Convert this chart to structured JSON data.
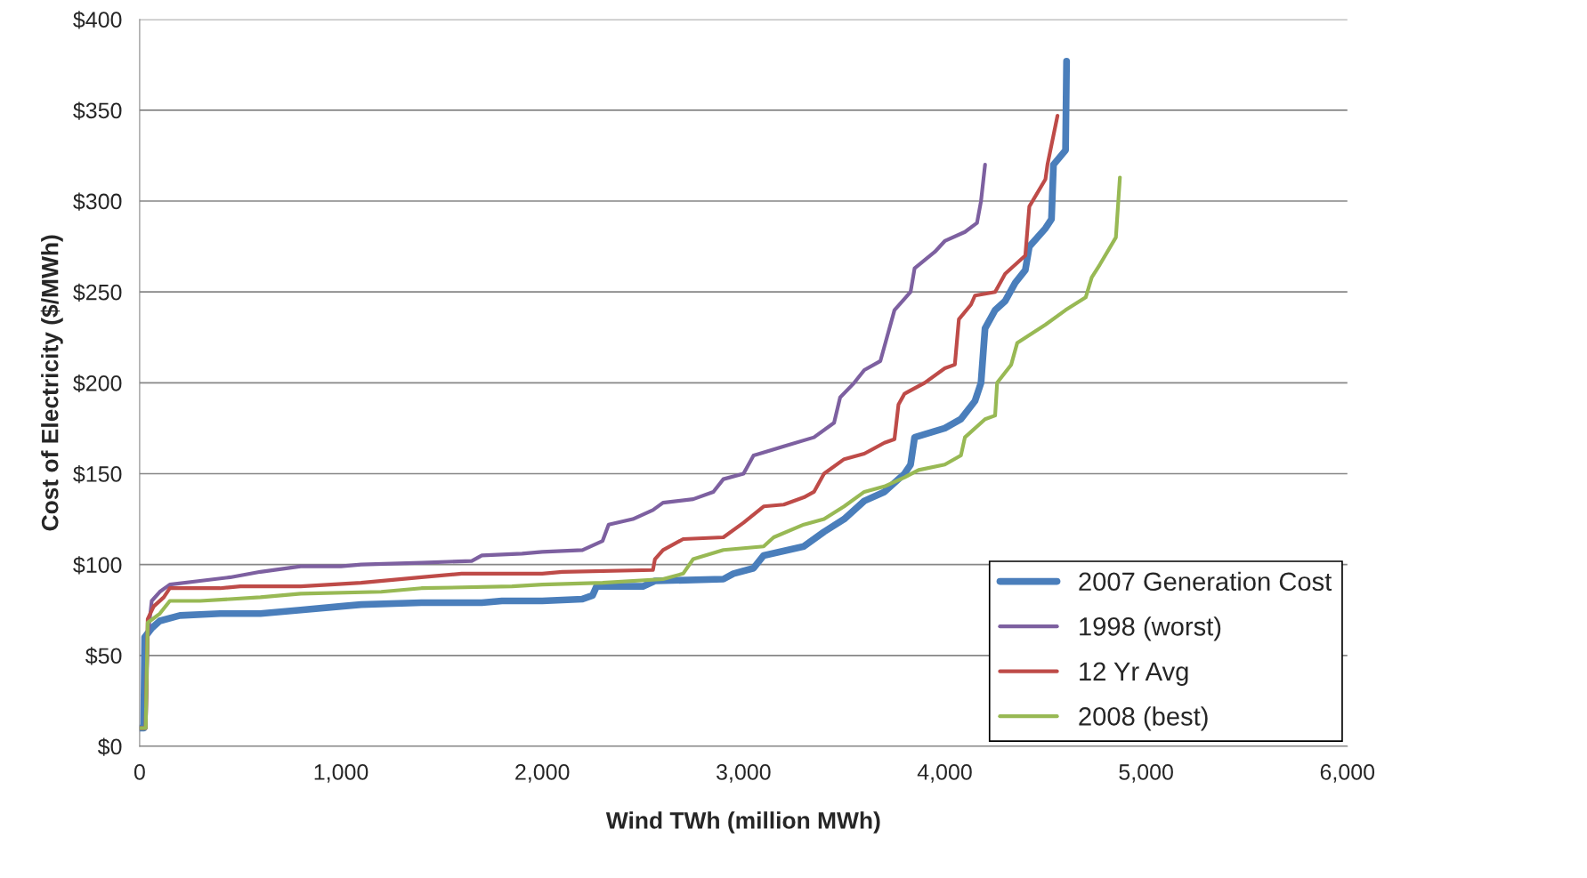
{
  "chart_data": {
    "type": "line",
    "xlabel": "Wind TWh (million MWh)",
    "ylabel": "Cost of Electricity ($/MWh)",
    "xlim": [
      0,
      6000
    ],
    "ylim": [
      0,
      400
    ],
    "xticks": [
      0,
      {
        "value": 1000,
        "label": "1,000"
      },
      {
        "value": 2000,
        "label": "2,000"
      },
      {
        "value": 3000,
        "label": "3,000"
      },
      {
        "value": 4000,
        "label": "4,000"
      },
      {
        "value": 5000,
        "label": "5,000"
      },
      {
        "value": 6000,
        "label": "6,000"
      }
    ],
    "yticks": [
      {
        "value": 0,
        "label": "$0"
      },
      {
        "value": 50,
        "label": "$50"
      },
      {
        "value": 100,
        "label": "$100"
      },
      {
        "value": 150,
        "label": "$150"
      },
      {
        "value": 200,
        "label": "$200"
      },
      {
        "value": 250,
        "label": "$250"
      },
      {
        "value": 300,
        "label": "$300"
      },
      {
        "value": 350,
        "label": "$350"
      },
      {
        "value": 400,
        "label": "$400"
      }
    ],
    "grid": "y",
    "legend": "bottom right",
    "marker": "none",
    "line_style": "solid",
    "series": [
      {
        "name": "2007 Generation Cost",
        "color": "#4a7ebb",
        "x": [
          0,
          20,
          25,
          60,
          100,
          200,
          400,
          600,
          800,
          1000,
          1100,
          1400,
          1700,
          1800,
          2000,
          2200,
          2250,
          2270,
          2500,
          2560,
          2900,
          2950,
          3050,
          3100,
          3300,
          3400,
          3500,
          3600,
          3700,
          3800,
          3830,
          3850,
          4000,
          4080,
          4150,
          4180,
          4200,
          4250,
          4300,
          4350,
          4400,
          4420,
          4500,
          4530,
          4540,
          4600,
          4605
        ],
        "values": [
          10,
          10,
          60,
          65,
          69,
          72,
          73,
          73,
          75,
          77,
          78,
          79,
          79,
          80,
          80,
          81,
          83,
          88,
          88,
          91,
          92,
          95,
          98,
          105,
          110,
          118,
          125,
          135,
          140,
          150,
          155,
          170,
          175,
          180,
          190,
          200,
          230,
          240,
          245,
          255,
          262,
          275,
          285,
          290,
          320,
          328,
          377
        ]
      },
      {
        "name": "1998 (worst)",
        "color": "#7d60a0",
        "x": [
          0,
          30,
          40,
          60,
          100,
          150,
          300,
          450,
          600,
          800,
          1000,
          1100,
          1400,
          1650,
          1700,
          1900,
          2000,
          2200,
          2300,
          2330,
          2450,
          2550,
          2600,
          2750,
          2850,
          2900,
          3000,
          3050,
          3200,
          3350,
          3450,
          3480,
          3550,
          3600,
          3680,
          3700,
          3750,
          3830,
          3850,
          3950,
          4000,
          4100,
          4160,
          4180,
          4200
        ],
        "values": [
          10,
          10,
          60,
          80,
          85,
          89,
          91,
          93,
          96,
          99,
          99,
          100,
          101,
          102,
          105,
          106,
          107,
          108,
          113,
          122,
          125,
          130,
          134,
          136,
          140,
          147,
          150,
          160,
          165,
          170,
          178,
          192,
          200,
          207,
          212,
          220,
          240,
          250,
          263,
          272,
          278,
          283,
          288,
          300,
          320
        ]
      },
      {
        "name": "12 Yr Avg",
        "color": "#be4b48",
        "x": [
          0,
          30,
          40,
          70,
          120,
          150,
          400,
          500,
          800,
          1100,
          1400,
          1600,
          2000,
          2100,
          2550,
          2560,
          2600,
          2700,
          2900,
          3000,
          3100,
          3200,
          3300,
          3350,
          3400,
          3500,
          3600,
          3700,
          3750,
          3770,
          3800,
          3900,
          4000,
          4050,
          4070,
          4130,
          4150,
          4250,
          4300,
          4400,
          4420,
          4500,
          4510,
          4560
        ],
        "values": [
          10,
          10,
          70,
          77,
          82,
          87,
          87,
          88,
          88,
          90,
          93,
          95,
          95,
          96,
          97,
          103,
          108,
          114,
          115,
          123,
          132,
          133,
          137,
          140,
          150,
          158,
          161,
          167,
          169,
          188,
          194,
          200,
          208,
          210,
          235,
          243,
          248,
          250,
          260,
          270,
          297,
          312,
          320,
          347
        ]
      },
      {
        "name": "2008 (best)",
        "color": "#98b954",
        "x": [
          0,
          30,
          40,
          100,
          150,
          300,
          600,
          800,
          1200,
          1400,
          1850,
          2000,
          2300,
          2600,
          2700,
          2750,
          2900,
          3100,
          3150,
          3300,
          3400,
          3500,
          3600,
          3700,
          3800,
          3870,
          4000,
          4080,
          4100,
          4200,
          4250,
          4260,
          4330,
          4360,
          4500,
          4600,
          4700,
          4730,
          4770,
          4850,
          4870
        ],
        "values": [
          10,
          10,
          68,
          73,
          80,
          80,
          82,
          84,
          85,
          87,
          88,
          89,
          90,
          92,
          95,
          103,
          108,
          110,
          115,
          122,
          125,
          132,
          140,
          143,
          148,
          152,
          155,
          160,
          170,
          180,
          182,
          200,
          210,
          222,
          232,
          240,
          247,
          258,
          265,
          280,
          313
        ]
      }
    ]
  }
}
